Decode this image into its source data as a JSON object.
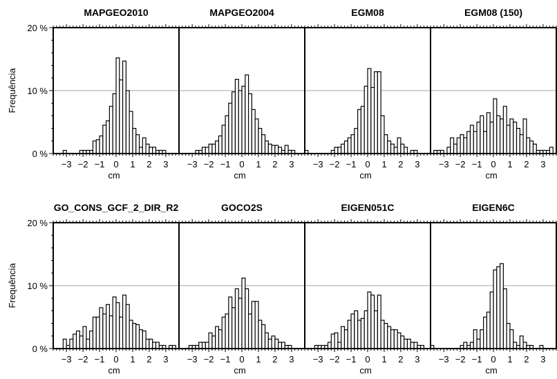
{
  "chart_data": [
    {
      "type": "bar",
      "title": "MAPGEO2010",
      "xlabel": "cm",
      "ylabel": "Frequência",
      "xlim": [
        -3.8,
        3.8
      ],
      "ylim": [
        0,
        20
      ],
      "x_ticks": [
        -3,
        -2,
        -1,
        0,
        1,
        2,
        3
      ],
      "x_tick_labels": [
        "−3",
        "−2",
        "−1",
        "0",
        "1",
        "2",
        "3"
      ],
      "y_ticks": [
        0,
        10,
        20
      ],
      "y_tick_labels": [
        "0 %",
        "10 %",
        "20 %"
      ],
      "grid": true,
      "bin_width": 0.2,
      "x": [
        -3.1,
        -2.1,
        -1.9,
        -1.7,
        -1.5,
        -1.3,
        -1.1,
        -0.9,
        -0.7,
        -0.5,
        -0.3,
        -0.1,
        0.1,
        0.3,
        0.5,
        0.7,
        0.9,
        1.1,
        1.3,
        1.5,
        1.7,
        1.9,
        2.1,
        2.3,
        2.5,
        2.7,
        2.9
      ],
      "values": [
        0.5,
        0.5,
        0.5,
        0.5,
        0.5,
        2.0,
        2.2,
        2.8,
        4.5,
        5.2,
        7.5,
        9.5,
        15.2,
        11.7,
        14.7,
        10.0,
        6.7,
        4.0,
        3.0,
        1.0,
        2.5,
        1.5,
        1.0,
        1.0,
        0.5,
        0.5,
        0.5
      ]
    },
    {
      "type": "bar",
      "title": "MAPGEO2004",
      "xlabel": "cm",
      "xlim": [
        -3.8,
        3.8
      ],
      "ylim": [
        0,
        20
      ],
      "x_ticks": [
        -3,
        -2,
        -1,
        0,
        1,
        2,
        3
      ],
      "x_tick_labels": [
        "−3",
        "−2",
        "−1",
        "0",
        "1",
        "2",
        "3"
      ],
      "grid": true,
      "bin_width": 0.2,
      "x": [
        -2.7,
        -2.5,
        -2.3,
        -2.1,
        -1.9,
        -1.7,
        -1.5,
        -1.3,
        -1.1,
        -0.9,
        -0.7,
        -0.5,
        -0.3,
        -0.1,
        0.1,
        0.3,
        0.5,
        0.7,
        0.9,
        1.1,
        1.3,
        1.5,
        1.7,
        1.9,
        2.1,
        2.3,
        2.5,
        2.7,
        2.9,
        3.1
      ],
      "values": [
        0.5,
        0.5,
        1.0,
        1.0,
        1.5,
        1.5,
        2.0,
        2.8,
        4.5,
        6.0,
        8.0,
        9.8,
        11.8,
        10.0,
        10.7,
        12.5,
        9.5,
        7.0,
        5.5,
        4.0,
        3.0,
        2.0,
        1.5,
        1.3,
        1.3,
        1.0,
        0.5,
        1.3,
        0.5,
        0.5
      ]
    },
    {
      "type": "bar",
      "title": "EGM08",
      "xlabel": "cm",
      "xlim": [
        -3.8,
        3.8
      ],
      "ylim": [
        0,
        20
      ],
      "x_ticks": [
        -3,
        -2,
        -1,
        0,
        1,
        2,
        3
      ],
      "x_tick_labels": [
        "−3",
        "−2",
        "−1",
        "0",
        "1",
        "2",
        "3"
      ],
      "grid": true,
      "bin_width": 0.2,
      "x": [
        -3.7,
        -2.1,
        -1.9,
        -1.7,
        -1.5,
        -1.3,
        -1.1,
        -0.9,
        -0.7,
        -0.5,
        -0.3,
        -0.1,
        0.1,
        0.3,
        0.5,
        0.7,
        0.9,
        1.1,
        1.3,
        1.5,
        1.7,
        1.9,
        2.1,
        2.3,
        2.7,
        2.9
      ],
      "values": [
        0.5,
        0.5,
        1.0,
        1.0,
        1.5,
        2.0,
        2.5,
        3.0,
        4.0,
        7.0,
        7.5,
        10.7,
        13.5,
        10.5,
        13.0,
        13.0,
        6.0,
        3.0,
        2.0,
        1.5,
        1.0,
        2.5,
        1.5,
        1.0,
        0.5,
        0.5
      ]
    },
    {
      "type": "bar",
      "title": "EGM08 (150)",
      "xlabel": "cm",
      "xlim": [
        -3.8,
        3.8
      ],
      "ylim": [
        0,
        20
      ],
      "x_ticks": [
        -3,
        -2,
        -1,
        0,
        1,
        2,
        3
      ],
      "x_tick_labels": [
        "−3",
        "−2",
        "−1",
        "0",
        "1",
        "2",
        "3"
      ],
      "grid": true,
      "bin_width": 0.2,
      "x": [
        -3.5,
        -3.3,
        -3.1,
        -2.7,
        -2.5,
        -2.3,
        -2.1,
        -1.9,
        -1.7,
        -1.5,
        -1.3,
        -1.1,
        -0.9,
        -0.7,
        -0.5,
        -0.3,
        -0.1,
        0.1,
        0.3,
        0.5,
        0.7,
        0.9,
        1.1,
        1.3,
        1.5,
        1.7,
        1.9,
        2.1,
        2.3,
        2.5,
        2.7,
        2.9,
        3.1,
        3.3,
        3.5
      ],
      "values": [
        0.5,
        0.5,
        0.5,
        1.0,
        2.5,
        1.5,
        2.5,
        3.0,
        2.5,
        3.5,
        4.5,
        3.5,
        5.0,
        6.0,
        3.5,
        6.5,
        5.0,
        8.7,
        6.0,
        5.5,
        7.5,
        4.5,
        5.5,
        5.0,
        4.0,
        3.0,
        5.5,
        2.5,
        2.0,
        1.5,
        0.5,
        0.5,
        0.5,
        0.5,
        1.0
      ]
    },
    {
      "type": "bar",
      "title": "GO_CONS_GCF_2_DIR_R2",
      "xlabel": "cm",
      "ylabel": "Frequência",
      "xlim": [
        -3.8,
        3.8
      ],
      "ylim": [
        0,
        20
      ],
      "x_ticks": [
        -3,
        -2,
        -1,
        0,
        1,
        2,
        3
      ],
      "x_tick_labels": [
        "−3",
        "−2",
        "−1",
        "0",
        "1",
        "2",
        "3"
      ],
      "y_ticks": [
        0,
        10,
        20
      ],
      "y_tick_labels": [
        "0 %",
        "10 %",
        "20 %"
      ],
      "grid": true,
      "bin_width": 0.2,
      "x": [
        -3.1,
        -2.9,
        -2.7,
        -2.5,
        -2.3,
        -2.1,
        -1.9,
        -1.7,
        -1.5,
        -1.3,
        -1.1,
        -0.9,
        -0.7,
        -0.5,
        -0.3,
        -0.1,
        0.1,
        0.3,
        0.5,
        0.7,
        0.9,
        1.1,
        1.3,
        1.5,
        1.7,
        1.9,
        2.1,
        2.3,
        2.5,
        2.7,
        2.9,
        3.3,
        3.5
      ],
      "values": [
        1.5,
        0.5,
        1.5,
        2.3,
        2.8,
        2.0,
        3.5,
        1.5,
        2.8,
        5.0,
        5.0,
        6.5,
        5.5,
        7.0,
        5.2,
        8.2,
        7.3,
        5.0,
        8.5,
        7.0,
        4.5,
        4.0,
        3.8,
        3.0,
        2.8,
        1.5,
        1.5,
        1.0,
        1.0,
        0.5,
        0.5,
        0.5,
        0.5
      ]
    },
    {
      "type": "bar",
      "title": "GOCO2S",
      "xlabel": "cm",
      "xlim": [
        -3.8,
        3.8
      ],
      "ylim": [
        0,
        20
      ],
      "x_ticks": [
        -3,
        -2,
        -1,
        0,
        1,
        2,
        3
      ],
      "x_tick_labels": [
        "−3",
        "−2",
        "−1",
        "0",
        "1",
        "2",
        "3"
      ],
      "grid": true,
      "bin_width": 0.2,
      "x": [
        -3.1,
        -2.9,
        -2.7,
        -2.5,
        -2.3,
        -2.1,
        -1.9,
        -1.7,
        -1.5,
        -1.3,
        -1.1,
        -0.9,
        -0.7,
        -0.5,
        -0.3,
        -0.1,
        0.1,
        0.3,
        0.5,
        0.7,
        0.9,
        1.1,
        1.3,
        1.5,
        1.7,
        1.9,
        2.1,
        2.3,
        2.5,
        2.7,
        2.9
      ],
      "values": [
        0.5,
        0.5,
        0.5,
        1.0,
        1.0,
        1.0,
        2.5,
        2.0,
        3.5,
        3.0,
        5.0,
        5.5,
        8.2,
        6.5,
        9.5,
        8.0,
        11.2,
        9.5,
        5.5,
        7.5,
        7.5,
        4.5,
        3.8,
        2.5,
        1.5,
        2.0,
        1.5,
        1.0,
        1.0,
        0.5,
        0.5
      ]
    },
    {
      "type": "bar",
      "title": "EIGEN051C",
      "xlabel": "cm",
      "xlim": [
        -3.8,
        3.8
      ],
      "ylim": [
        0,
        20
      ],
      "x_ticks": [
        -3,
        -2,
        -1,
        0,
        1,
        2,
        3
      ],
      "x_tick_labels": [
        "−3",
        "−2",
        "−1",
        "0",
        "1",
        "2",
        "3"
      ],
      "grid": true,
      "bin_width": 0.2,
      "x": [
        -3.1,
        -2.9,
        -2.7,
        -2.5,
        -2.3,
        -2.1,
        -1.9,
        -1.7,
        -1.5,
        -1.3,
        -1.1,
        -0.9,
        -0.7,
        -0.5,
        -0.3,
        -0.1,
        0.1,
        0.3,
        0.5,
        0.7,
        0.9,
        1.1,
        1.3,
        1.5,
        1.7,
        1.9,
        2.1,
        2.3,
        2.5,
        2.7,
        2.9,
        3.1,
        3.3
      ],
      "values": [
        0.5,
        0.5,
        0.5,
        0.5,
        1.0,
        2.3,
        2.5,
        1.0,
        3.5,
        3.0,
        4.5,
        5.5,
        6.0,
        4.5,
        4.8,
        6.0,
        9.0,
        8.5,
        6.0,
        8.5,
        4.5,
        4.0,
        3.5,
        3.0,
        3.0,
        2.5,
        2.0,
        1.5,
        1.5,
        1.0,
        1.0,
        0.5,
        0.5
      ]
    },
    {
      "type": "bar",
      "title": "EIGEN6C",
      "xlabel": "cm",
      "xlim": [
        -3.8,
        3.8
      ],
      "ylim": [
        0,
        20
      ],
      "x_ticks": [
        -3,
        -2,
        -1,
        0,
        1,
        2,
        3
      ],
      "x_tick_labels": [
        "−3",
        "−2",
        "−1",
        "0",
        "1",
        "2",
        "3"
      ],
      "grid": true,
      "bin_width": 0.2,
      "x": [
        -3.7,
        -1.9,
        -1.7,
        -1.5,
        -1.3,
        -1.1,
        -0.9,
        -0.7,
        -0.5,
        -0.3,
        -0.1,
        0.1,
        0.3,
        0.5,
        0.7,
        0.9,
        1.1,
        1.3,
        1.5,
        1.7,
        1.9,
        2.1,
        2.3,
        2.9
      ],
      "values": [
        0.5,
        0.5,
        1.0,
        0.5,
        1.0,
        3.0,
        1.5,
        3.0,
        5.0,
        5.8,
        9.0,
        12.5,
        13.0,
        13.5,
        9.5,
        4.0,
        3.0,
        1.0,
        0.5,
        2.0,
        1.0,
        0.5,
        0.5,
        0.5
      ]
    }
  ]
}
